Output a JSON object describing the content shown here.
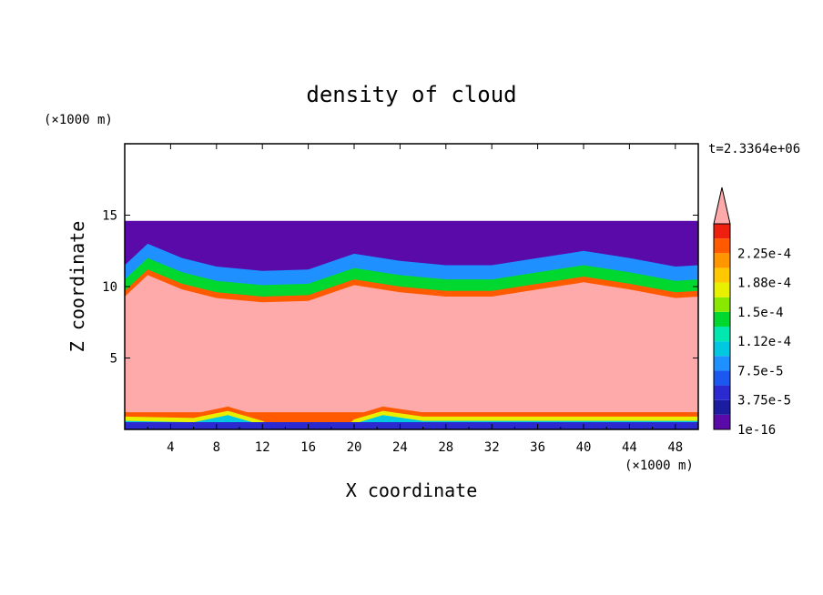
{
  "chart_data": {
    "type": "heatmap",
    "title": "density of cloud",
    "xlabel": "X coordinate",
    "ylabel": "Z coordinate",
    "x_unit": "(×1000 m)",
    "y_unit": "(×1000 m)",
    "time_label": "t=2.3364e+06",
    "xlim": [
      0,
      50
    ],
    "ylim": [
      0,
      20
    ],
    "x_ticks": [
      "4",
      "8",
      "12",
      "16",
      "20",
      "24",
      "28",
      "32",
      "36",
      "40",
      "44",
      "48"
    ],
    "y_ticks": [
      "5",
      "10",
      "15"
    ],
    "colorbar_labels": [
      "1e-16",
      "3.75e-5",
      "7.5e-5",
      "1.12e-4",
      "1.5e-4",
      "1.88e-4",
      "2.25e-4"
    ],
    "colorbar_colors": [
      "#5a0aa8",
      "#1c1ca0",
      "#2a2ad0",
      "#1c58f0",
      "#1e90ff",
      "#00c8e0",
      "#00e8b0",
      "#00d830",
      "#88e800",
      "#e8f000",
      "#ffc800",
      "#ff9600",
      "#ff5a00",
      "#f02010",
      "#ffaaaa"
    ],
    "cloud_top_km": 14.6,
    "cloud_layer_bottom_profile": [
      [
        0,
        9.3
      ],
      [
        2,
        10.8
      ],
      [
        5,
        9.8
      ],
      [
        8,
        9.2
      ],
      [
        12,
        8.9
      ],
      [
        16,
        9.0
      ],
      [
        20,
        10.1
      ],
      [
        24,
        9.6
      ],
      [
        28,
        9.3
      ],
      [
        32,
        9.3
      ],
      [
        36,
        9.8
      ],
      [
        40,
        10.3
      ],
      [
        44,
        9.8
      ],
      [
        48,
        9.2
      ],
      [
        50,
        9.3
      ]
    ],
    "surface_layer_profile": [
      [
        0,
        1.2
      ],
      [
        6,
        1.1
      ],
      [
        9,
        1.6
      ],
      [
        12,
        0.9
      ],
      [
        13.5,
        0.2
      ],
      [
        19,
        0.2
      ],
      [
        20,
        1.0
      ],
      [
        22.5,
        1.6
      ],
      [
        26,
        1.2
      ],
      [
        35,
        1.2
      ],
      [
        50,
        1.2
      ]
    ]
  }
}
